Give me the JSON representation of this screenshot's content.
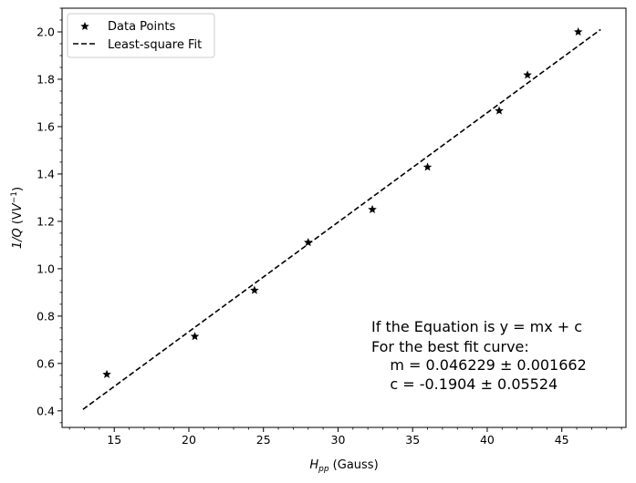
{
  "chart_data": {
    "type": "scatter",
    "xlabel": {
      "main": "H",
      "sub": "pp",
      "unit": " (Gauss)"
    },
    "ylabel": {
      "main": "1/Q",
      "paren_open": " (V",
      "sup": "−1",
      "paren_close": ")"
    },
    "xlim": [
      11.5,
      49.3
    ],
    "ylim": [
      0.33,
      2.1
    ],
    "xticks": [
      15,
      20,
      25,
      30,
      35,
      40,
      45
    ],
    "yticks": [
      0.4,
      0.6,
      0.8,
      1.0,
      1.2,
      1.4,
      1.6,
      1.8,
      2.0
    ],
    "ytick_labels": [
      "0.4",
      "0.6",
      "0.8",
      "1.0",
      "1.2",
      "1.4",
      "1.6",
      "1.8",
      "2.0"
    ],
    "series": [
      {
        "name": "Data Points",
        "marker": "star",
        "color": "#000000",
        "x": [
          14.5,
          20.4,
          24.4,
          28.0,
          32.3,
          36.0,
          40.8,
          42.7,
          46.1
        ],
        "y": [
          0.554,
          0.714,
          0.909,
          1.111,
          1.25,
          1.429,
          1.667,
          1.818,
          2.0
        ]
      },
      {
        "name": "Least-square Fit",
        "line": "dashed",
        "color": "#000000",
        "x": [
          12.9,
          47.6
        ],
        "y": [
          0.406,
          2.01
        ]
      }
    ],
    "legend": {
      "position": "upper-left"
    },
    "annotation": [
      "If the Equation is y = mx + c",
      "For the best fit curve:",
      "    m = 0.046229 ± 0.001662",
      "    c = -0.1904 ± 0.05524"
    ]
  }
}
